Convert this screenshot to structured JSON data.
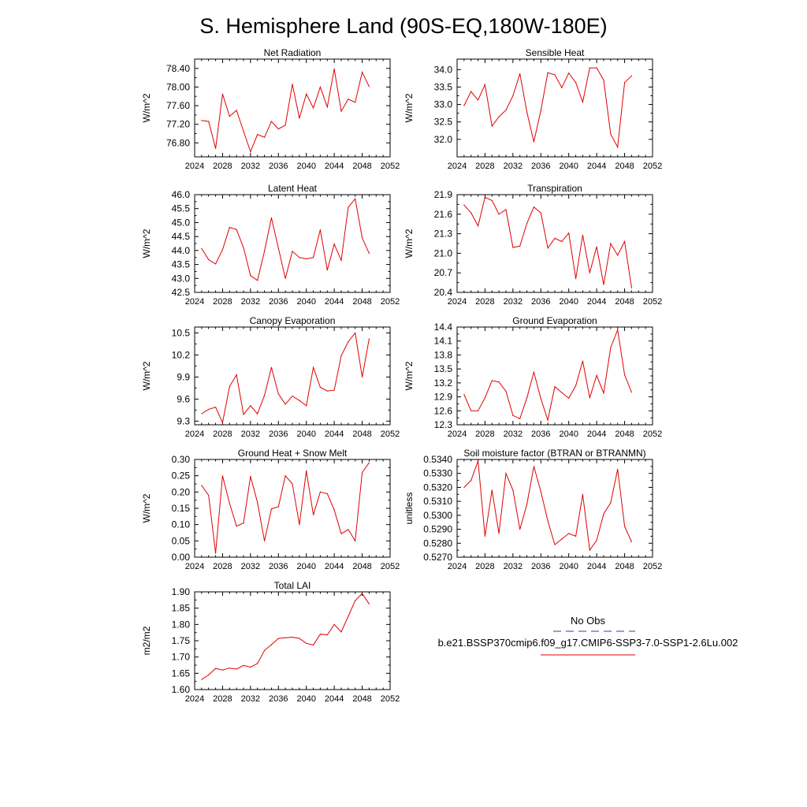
{
  "page": {
    "title": "S. Hemisphere Land (90S-EQ,180W-180E)"
  },
  "legend": {
    "obs_label": "No Obs",
    "obs_color": "#3a3a9a",
    "model_label": "b.e21.BSSP370cmip6.f09_g17.CMIP6-SSP3-7.0-SSP1-2.6Lu.002",
    "model_color": "#e00000"
  },
  "chart_data": [
    {
      "type": "line",
      "title": "Net Radiation",
      "ylabel": "W/m^2",
      "xlim": [
        2024,
        2052
      ],
      "xticks": [
        "2024",
        "2028",
        "2032",
        "2036",
        "2040",
        "2044",
        "2048",
        "2052"
      ],
      "ylim": [
        76.5,
        78.6
      ],
      "yticks": [
        "76.80",
        "77.20",
        "77.60",
        "78.00",
        "78.40"
      ],
      "color": "#e00000",
      "x": [
        2025,
        2026,
        2027,
        2028,
        2029,
        2030,
        2031,
        2032,
        2033,
        2034,
        2035,
        2036,
        2037,
        2038,
        2039,
        2040,
        2041,
        2042,
        2043,
        2044,
        2045,
        2046,
        2047,
        2048,
        2049
      ],
      "y": [
        77.28,
        77.26,
        76.68,
        77.85,
        77.37,
        77.5,
        77.05,
        76.61,
        76.98,
        76.92,
        77.26,
        77.1,
        77.18,
        78.06,
        77.33,
        77.85,
        77.55,
        78.0,
        77.57,
        78.39,
        77.48,
        77.74,
        77.67,
        78.32,
        78.01
      ]
    },
    {
      "type": "line",
      "title": "Sensible Heat",
      "ylabel": "W/m^2",
      "xlim": [
        2024,
        2052
      ],
      "xticks": [
        "2024",
        "2028",
        "2032",
        "2036",
        "2040",
        "2044",
        "2048",
        "2052"
      ],
      "ylim": [
        31.5,
        34.3
      ],
      "yticks": [
        "32.0",
        "32.5",
        "33.0",
        "33.5",
        "34.0"
      ],
      "color": "#e00000",
      "x": [
        2025,
        2026,
        2027,
        2028,
        2029,
        2030,
        2031,
        2032,
        2033,
        2034,
        2035,
        2036,
        2037,
        2038,
        2039,
        2040,
        2041,
        2042,
        2043,
        2044,
        2045,
        2046,
        2047,
        2048,
        2049
      ],
      "y": [
        32.97,
        33.37,
        33.13,
        33.57,
        32.38,
        32.65,
        32.84,
        33.25,
        33.88,
        32.78,
        31.93,
        32.83,
        33.91,
        33.85,
        33.48,
        33.9,
        33.63,
        33.07,
        34.05,
        34.05,
        33.7,
        32.15,
        31.78,
        33.63,
        33.82
      ]
    },
    {
      "type": "line",
      "title": "Latent Heat",
      "ylabel": "W/m^2",
      "xlim": [
        2024,
        2052
      ],
      "xticks": [
        "2024",
        "2028",
        "2032",
        "2036",
        "2040",
        "2044",
        "2048",
        "2052"
      ],
      "ylim": [
        42.5,
        46.0
      ],
      "yticks": [
        "42.5",
        "43.0",
        "43.5",
        "44.0",
        "44.5",
        "45.0",
        "45.5",
        "46.0"
      ],
      "color": "#e00000",
      "x": [
        2025,
        2026,
        2027,
        2028,
        2029,
        2030,
        2031,
        2032,
        2033,
        2034,
        2035,
        2036,
        2037,
        2038,
        2039,
        2040,
        2041,
        2042,
        2043,
        2044,
        2045,
        2046,
        2047,
        2048,
        2049
      ],
      "y": [
        44.07,
        43.67,
        43.52,
        44.03,
        44.83,
        44.75,
        44.1,
        43.1,
        42.93,
        43.98,
        45.17,
        44.08,
        43.0,
        43.97,
        43.75,
        43.7,
        43.75,
        44.74,
        43.3,
        44.23,
        43.65,
        45.55,
        45.85,
        44.45,
        43.9
      ]
    },
    {
      "type": "line",
      "title": "Transpiration",
      "ylabel": "W/m^2",
      "xlim": [
        2024,
        2052
      ],
      "xticks": [
        "2024",
        "2028",
        "2032",
        "2036",
        "2040",
        "2044",
        "2048",
        "2052"
      ],
      "ylim": [
        20.4,
        21.9
      ],
      "yticks": [
        "20.4",
        "20.7",
        "21.0",
        "21.3",
        "21.6",
        "21.9"
      ],
      "color": "#e00000",
      "x": [
        2025,
        2026,
        2027,
        2028,
        2029,
        2030,
        2031,
        2032,
        2033,
        2034,
        2035,
        2036,
        2037,
        2038,
        2039,
        2040,
        2041,
        2042,
        2043,
        2044,
        2045,
        2046,
        2047,
        2048,
        2049
      ],
      "y": [
        21.74,
        21.62,
        21.42,
        21.86,
        21.81,
        21.6,
        21.67,
        21.09,
        21.11,
        21.46,
        21.71,
        21.62,
        21.08,
        21.23,
        21.18,
        21.31,
        20.61,
        21.28,
        20.7,
        21.1,
        20.52,
        21.15,
        20.97,
        21.18,
        20.47
      ]
    },
    {
      "type": "line",
      "title": "Canopy Evaporation",
      "ylabel": "W/m^2",
      "xlim": [
        2024,
        2052
      ],
      "xticks": [
        "2024",
        "2028",
        "2032",
        "2036",
        "2040",
        "2044",
        "2048",
        "2052"
      ],
      "ylim": [
        9.25,
        10.58
      ],
      "yticks": [
        "9.3",
        "9.6",
        "9.9",
        "10.2",
        "10.5"
      ],
      "color": "#e00000",
      "x": [
        2025,
        2026,
        2027,
        2028,
        2029,
        2030,
        2031,
        2032,
        2033,
        2034,
        2035,
        2036,
        2037,
        2038,
        2039,
        2040,
        2041,
        2042,
        2043,
        2044,
        2045,
        2046,
        2047,
        2048,
        2049
      ],
      "y": [
        9.4,
        9.46,
        9.49,
        9.28,
        9.77,
        9.93,
        9.39,
        9.51,
        9.4,
        9.65,
        10.03,
        9.67,
        9.53,
        9.64,
        9.58,
        9.51,
        10.03,
        9.76,
        9.71,
        9.72,
        10.19,
        10.38,
        10.5,
        9.9,
        10.42
      ]
    },
    {
      "type": "line",
      "title": "Ground Evaporation",
      "ylabel": "W/m^2",
      "xlim": [
        2024,
        2052
      ],
      "xticks": [
        "2024",
        "2028",
        "2032",
        "2036",
        "2040",
        "2044",
        "2048",
        "2052"
      ],
      "ylim": [
        12.3,
        14.4
      ],
      "yticks": [
        "12.3",
        "12.6",
        "12.9",
        "13.2",
        "13.5",
        "13.8",
        "14.1",
        "14.4"
      ],
      "color": "#e00000",
      "x": [
        2025,
        2026,
        2027,
        2028,
        2029,
        2030,
        2031,
        2032,
        2033,
        2034,
        2035,
        2036,
        2037,
        2038,
        2039,
        2040,
        2041,
        2042,
        2043,
        2044,
        2045,
        2046,
        2047,
        2048,
        2049
      ],
      "y": [
        12.95,
        12.6,
        12.6,
        12.88,
        13.25,
        13.22,
        13.02,
        12.5,
        12.43,
        12.88,
        13.43,
        12.86,
        12.4,
        13.12,
        12.99,
        12.87,
        13.14,
        13.67,
        12.88,
        13.36,
        12.98,
        13.96,
        14.34,
        13.37,
        13.0
      ]
    },
    {
      "type": "line",
      "title": "Ground Heat + Snow Melt",
      "ylabel": "W/m^2",
      "xlim": [
        2024,
        2052
      ],
      "xticks": [
        "2024",
        "2028",
        "2032",
        "2036",
        "2040",
        "2044",
        "2048",
        "2052"
      ],
      "ylim": [
        0.0,
        0.3
      ],
      "yticks": [
        "0.00",
        "0.05",
        "0.10",
        "0.15",
        "0.20",
        "0.25",
        "0.30"
      ],
      "color": "#e00000",
      "x": [
        2025,
        2026,
        2027,
        2028,
        2029,
        2030,
        2031,
        2032,
        2033,
        2034,
        2035,
        2036,
        2037,
        2038,
        2039,
        2040,
        2041,
        2042,
        2043,
        2044,
        2045,
        2046,
        2047,
        2048,
        2049
      ],
      "y": [
        0.22,
        0.19,
        0.012,
        0.25,
        0.165,
        0.095,
        0.105,
        0.248,
        0.168,
        0.05,
        0.148,
        0.155,
        0.25,
        0.225,
        0.1,
        0.265,
        0.13,
        0.2,
        0.195,
        0.145,
        0.072,
        0.085,
        0.05,
        0.26,
        0.29
      ]
    },
    {
      "type": "line",
      "title": "Soil moisture factor (BTRAN or BTRANMN)",
      "ylabel": "unitless",
      "xlim": [
        2024,
        2052
      ],
      "xticks": [
        "2024",
        "2028",
        "2032",
        "2036",
        "2040",
        "2044",
        "2048",
        "2052"
      ],
      "ylim": [
        0.527,
        0.534
      ],
      "yticks": [
        "0.5270",
        "0.5280",
        "0.5290",
        "0.5300",
        "0.5310",
        "0.5320",
        "0.5330",
        "0.5340"
      ],
      "color": "#e00000",
      "x": [
        2025,
        2026,
        2027,
        2028,
        2029,
        2030,
        2031,
        2032,
        2033,
        2034,
        2035,
        2036,
        2037,
        2038,
        2039,
        2040,
        2041,
        2042,
        2043,
        2044,
        2045,
        2046,
        2047,
        2048,
        2049
      ],
      "y": [
        0.532,
        0.5325,
        0.5339,
        0.5285,
        0.5318,
        0.5287,
        0.533,
        0.5318,
        0.529,
        0.5308,
        0.5335,
        0.5317,
        0.5296,
        0.5279,
        0.5283,
        0.5287,
        0.5285,
        0.5315,
        0.5275,
        0.5282,
        0.5301,
        0.5309,
        0.5333,
        0.5292,
        0.5281
      ]
    },
    {
      "type": "line",
      "title": "Total LAI",
      "ylabel": "m2/m2",
      "xlim": [
        2024,
        2052
      ],
      "xticks": [
        "2024",
        "2028",
        "2032",
        "2036",
        "2040",
        "2044",
        "2048",
        "2052"
      ],
      "ylim": [
        1.6,
        1.9
      ],
      "yticks": [
        "1.60",
        "1.65",
        "1.70",
        "1.75",
        "1.80",
        "1.85",
        "1.90"
      ],
      "color": "#e00000",
      "x": [
        2025,
        2026,
        2027,
        2028,
        2029,
        2030,
        2031,
        2032,
        2033,
        2034,
        2035,
        2036,
        2037,
        2038,
        2039,
        2040,
        2041,
        2042,
        2043,
        2044,
        2045,
        2046,
        2047,
        2048,
        2049
      ],
      "y": [
        1.631,
        1.645,
        1.665,
        1.66,
        1.666,
        1.663,
        1.674,
        1.669,
        1.68,
        1.72,
        1.738,
        1.757,
        1.759,
        1.761,
        1.757,
        1.742,
        1.737,
        1.77,
        1.768,
        1.8,
        1.777,
        1.825,
        1.873,
        1.895,
        1.863
      ]
    }
  ]
}
